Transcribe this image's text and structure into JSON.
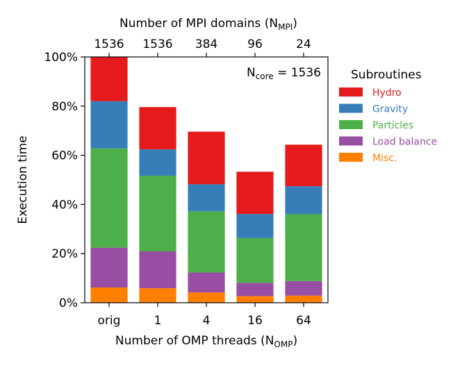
{
  "chart_data": {
    "type": "bar",
    "stacked": true,
    "top_axis_label": "Number of MPI domains (N",
    "top_axis_label_sub": "MPI",
    "top_axis_label_end": ")",
    "top_categories": [
      "1536",
      "1536",
      "384",
      "96",
      "24"
    ],
    "xlabel": "Number of OMP threads (N",
    "xlabel_sub": "OMP",
    "xlabel_end": ")",
    "ylabel": "Execution time",
    "categories": [
      "orig",
      "1",
      "4",
      "16",
      "64"
    ],
    "ylim": [
      0,
      100
    ],
    "y_ticks": [
      "0%",
      "20%",
      "40%",
      "60%",
      "80%",
      "100%"
    ],
    "annotation": "N",
    "annotation_sub": "core",
    "annotation_end": " = 1536",
    "legend_title": "Subroutines",
    "legend_position": "right",
    "grid": false,
    "series": [
      {
        "name": "Misc.",
        "color": "#ff7f00",
        "values": [
          6.2,
          5.9,
          4.2,
          2.7,
          2.9
        ]
      },
      {
        "name": "Load balance",
        "color": "#984ea3",
        "values": [
          16.2,
          15.0,
          8.1,
          5.4,
          5.9
        ]
      },
      {
        "name": "Particles",
        "color": "#4daf4a",
        "values": [
          40.4,
          30.8,
          24.9,
          18.2,
          27.2
        ]
      },
      {
        "name": "Gravity",
        "color": "#377eb8",
        "values": [
          19.2,
          10.7,
          11.0,
          9.8,
          11.4
        ]
      },
      {
        "name": "Hydro",
        "color": "#e41a1c",
        "values": [
          18.0,
          17.2,
          21.4,
          17.2,
          16.9
        ]
      }
    ],
    "legend_order": [
      "Hydro",
      "Gravity",
      "Particles",
      "Load balance",
      "Misc."
    ]
  }
}
